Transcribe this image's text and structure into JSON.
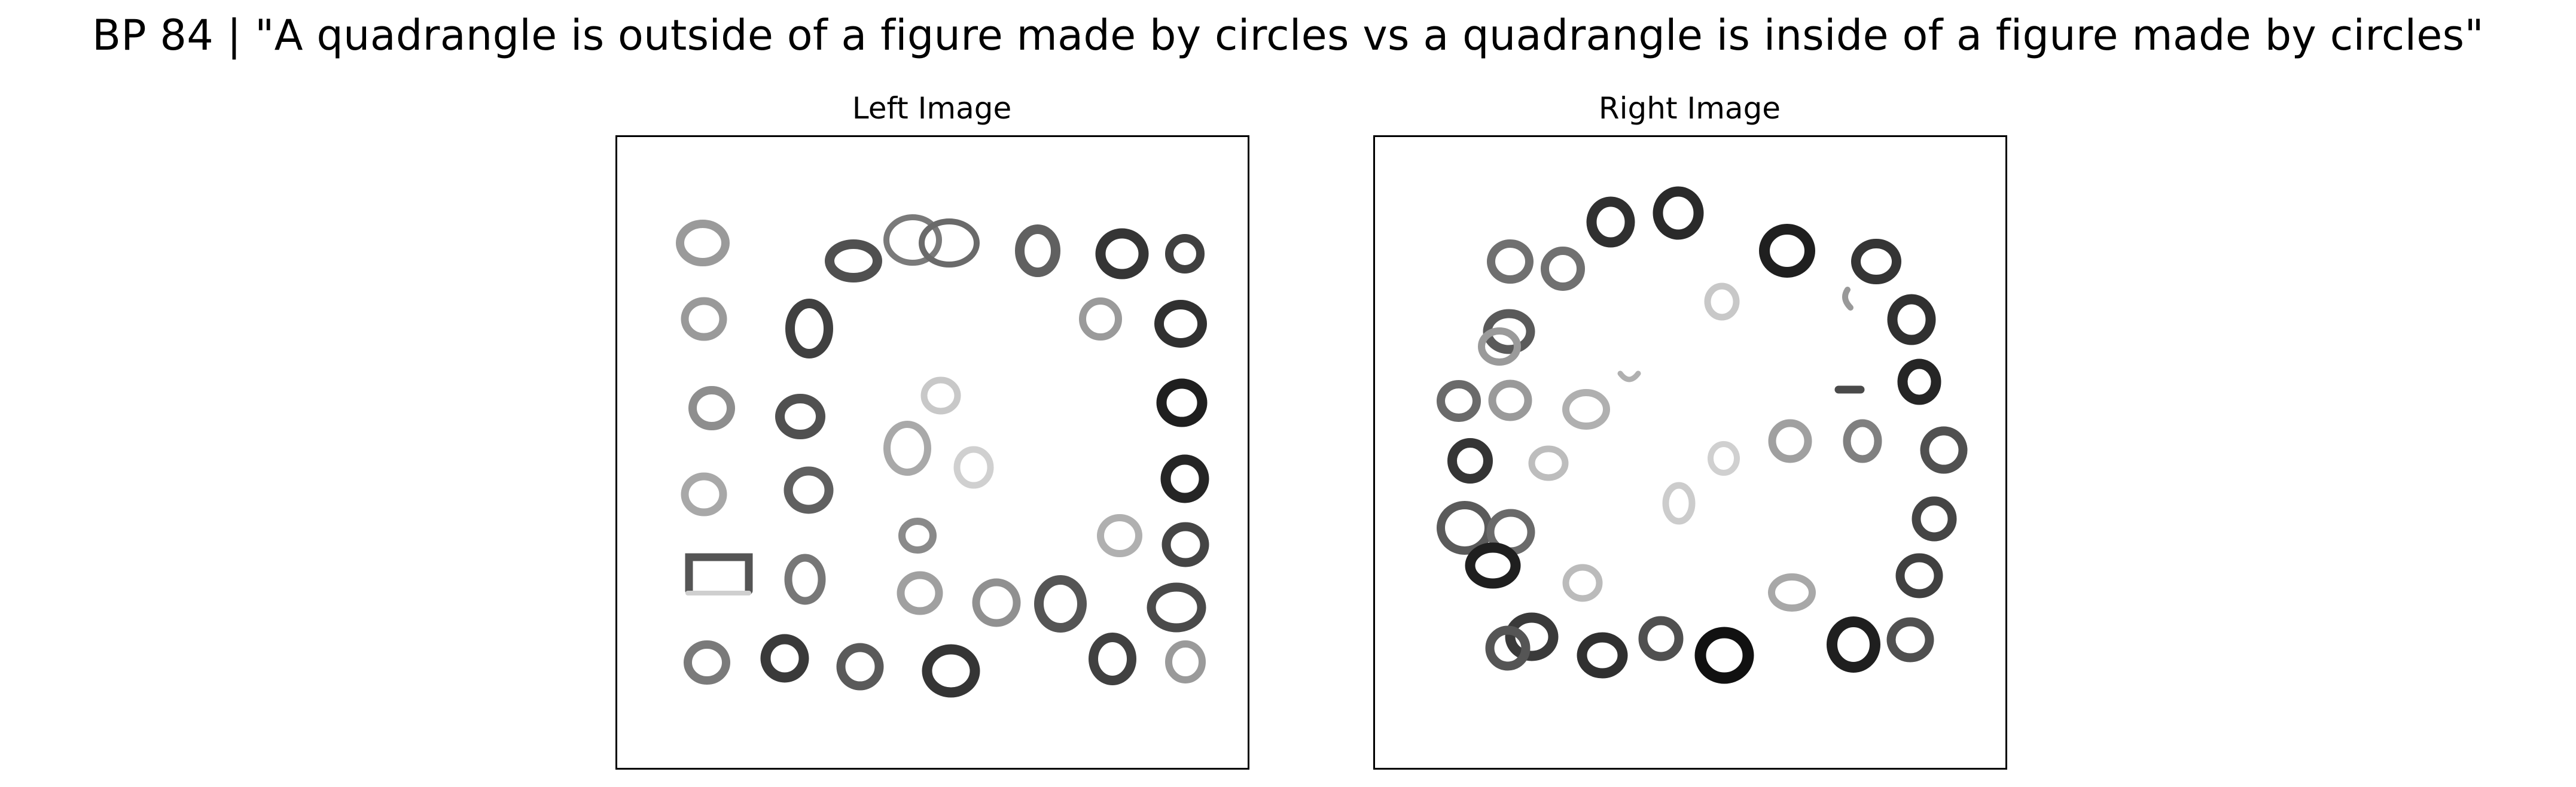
{
  "figure": {
    "title": "BP 84 | \"A quadrangle is outside of a figure made by circles vs a quadrangle is inside of a figure made by circles\""
  },
  "panels": {
    "left": {
      "title": "Left Image"
    },
    "right": {
      "title": "Right Image"
    }
  }
}
